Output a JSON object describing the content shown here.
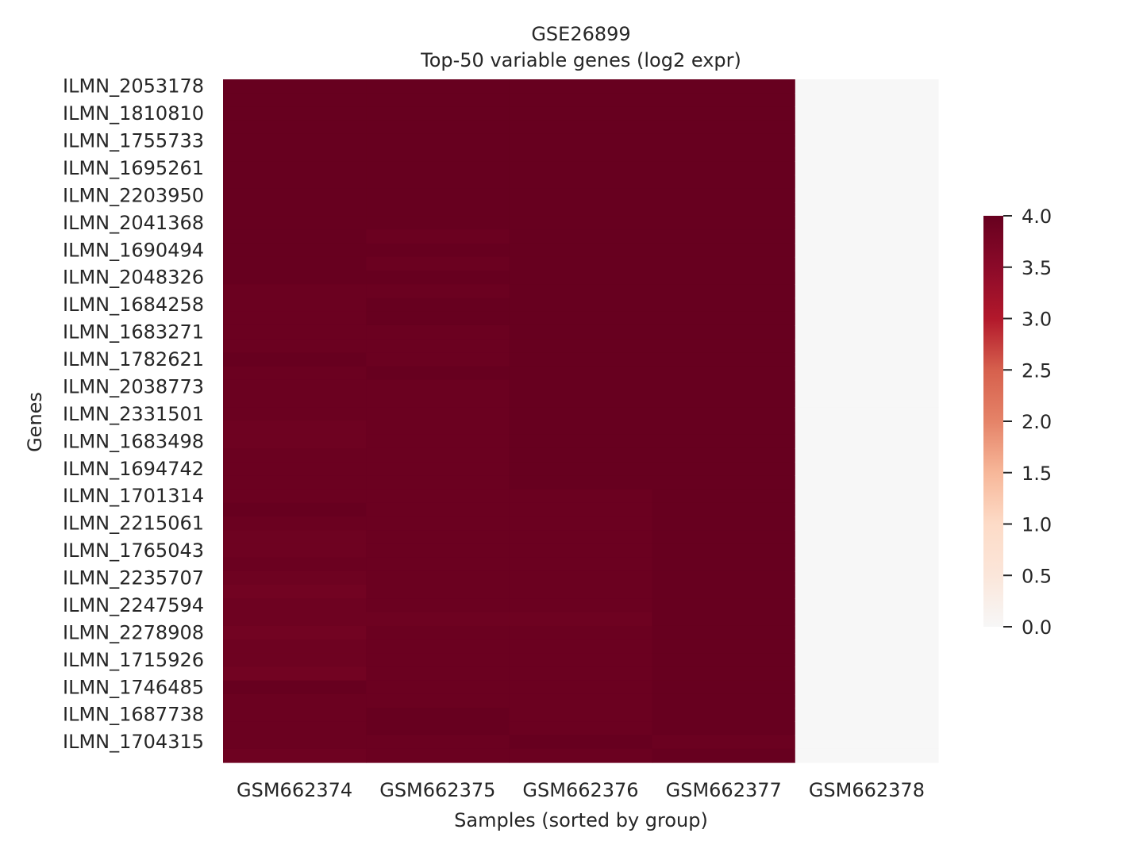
{
  "chart_data": {
    "type": "heatmap",
    "title": "GSE26899",
    "subtitle": "Top-50 variable genes (log2 expr)",
    "xlabel": "Samples (sorted by group)",
    "ylabel": "Genes",
    "x_categories": [
      "GSM662374",
      "GSM662375",
      "GSM662376",
      "GSM662377",
      "GSM662378"
    ],
    "y_tick_labels": [
      "ILMN_2053178",
      "ILMN_1810810",
      "ILMN_1755733",
      "ILMN_1695261",
      "ILMN_2203950",
      "ILMN_2041368",
      "ILMN_1690494",
      "ILMN_2048326",
      "ILMN_1684258",
      "ILMN_1683271",
      "ILMN_1782621",
      "ILMN_2038773",
      "ILMN_2331501",
      "ILMN_1683498",
      "ILMN_1694742",
      "ILMN_1701314",
      "ILMN_2215061",
      "ILMN_1765043",
      "ILMN_2235707",
      "ILMN_2247594",
      "ILMN_2278908",
      "ILMN_1715926",
      "ILMN_1746485",
      "ILMN_1687738",
      "ILMN_1704315"
    ],
    "n_rows": 50,
    "row_values_by_sample": [
      [
        4.0,
        4.0,
        4.0,
        4.0,
        4.0,
        4.0,
        4.0,
        4.0,
        4.0,
        4.0,
        4.0,
        4.0,
        4.0,
        4.0,
        4.0,
        3.95,
        3.95,
        3.95,
        3.95,
        3.95,
        4.0,
        3.95,
        3.95,
        3.95,
        3.95,
        3.9,
        3.9,
        3.95,
        3.95,
        3.95,
        3.95,
        4.0,
        3.95,
        3.9,
        3.9,
        3.95,
        3.9,
        3.85,
        3.9,
        3.9,
        3.85,
        3.9,
        3.9,
        3.85,
        4.0,
        3.95,
        3.95,
        3.95,
        3.95,
        3.9
      ],
      [
        4.0,
        4.0,
        4.0,
        4.0,
        4.0,
        4.0,
        4.0,
        4.0,
        4.0,
        4.0,
        4.0,
        3.95,
        4.0,
        3.95,
        4.0,
        3.95,
        4.0,
        4.0,
        3.95,
        3.95,
        3.95,
        4.0,
        3.95,
        3.95,
        3.95,
        3.95,
        3.95,
        3.95,
        3.95,
        3.95,
        3.95,
        3.95,
        3.95,
        3.95,
        3.95,
        3.95,
        3.95,
        3.95,
        3.95,
        3.9,
        3.95,
        3.95,
        3.95,
        3.95,
        3.95,
        3.95,
        4.0,
        4.0,
        3.95,
        3.95
      ],
      [
        4.0,
        4.0,
        4.0,
        4.0,
        4.0,
        4.0,
        4.0,
        4.0,
        4.0,
        4.0,
        4.0,
        4.0,
        4.0,
        4.0,
        4.0,
        4.0,
        4.0,
        4.0,
        4.0,
        4.0,
        4.0,
        4.0,
        4.0,
        4.0,
        4.0,
        4.0,
        4.0,
        4.0,
        4.0,
        4.0,
        3.95,
        3.95,
        3.95,
        3.95,
        3.95,
        3.95,
        3.95,
        3.95,
        3.95,
        3.9,
        3.95,
        3.95,
        3.95,
        3.95,
        3.95,
        3.95,
        3.95,
        3.95,
        4.0,
        3.95
      ],
      [
        4.0,
        4.0,
        4.0,
        4.0,
        4.0,
        4.0,
        4.0,
        4.0,
        4.0,
        4.0,
        4.0,
        4.0,
        4.0,
        4.0,
        4.0,
        4.0,
        4.0,
        4.0,
        4.0,
        4.0,
        4.0,
        4.0,
        4.0,
        4.0,
        4.0,
        4.0,
        4.0,
        4.0,
        4.0,
        4.0,
        4.0,
        4.0,
        4.0,
        4.0,
        4.0,
        4.0,
        4.0,
        4.0,
        4.0,
        4.0,
        4.0,
        4.0,
        4.0,
        4.0,
        4.0,
        4.0,
        4.0,
        4.0,
        3.95,
        4.0
      ],
      [
        0.0,
        0.0,
        0.0,
        0.0,
        0.0,
        0.0,
        0.0,
        0.0,
        0.0,
        0.0,
        0.0,
        0.0,
        0.0,
        0.0,
        0.0,
        0.0,
        0.0,
        0.0,
        0.0,
        0.0,
        0.0,
        0.0,
        0.0,
        0.0,
        0.0,
        0.0,
        0.0,
        0.0,
        0.0,
        0.0,
        0.0,
        0.0,
        0.0,
        0.0,
        0.0,
        0.0,
        0.0,
        0.0,
        0.0,
        0.0,
        0.0,
        0.0,
        0.0,
        0.0,
        0.0,
        0.0,
        0.0,
        0.0,
        0.0,
        0.0
      ]
    ],
    "colorbar": {
      "vmin": 0.0,
      "vmax": 4.0,
      "ticks": [
        "0.0",
        "0.5",
        "1.0",
        "1.5",
        "2.0",
        "2.5",
        "3.0",
        "3.5",
        "4.0"
      ],
      "colormap": "RdBu_r (upper half)",
      "color_low": "#f5f5f5",
      "color_high": "#67001f"
    },
    "grid": false
  }
}
